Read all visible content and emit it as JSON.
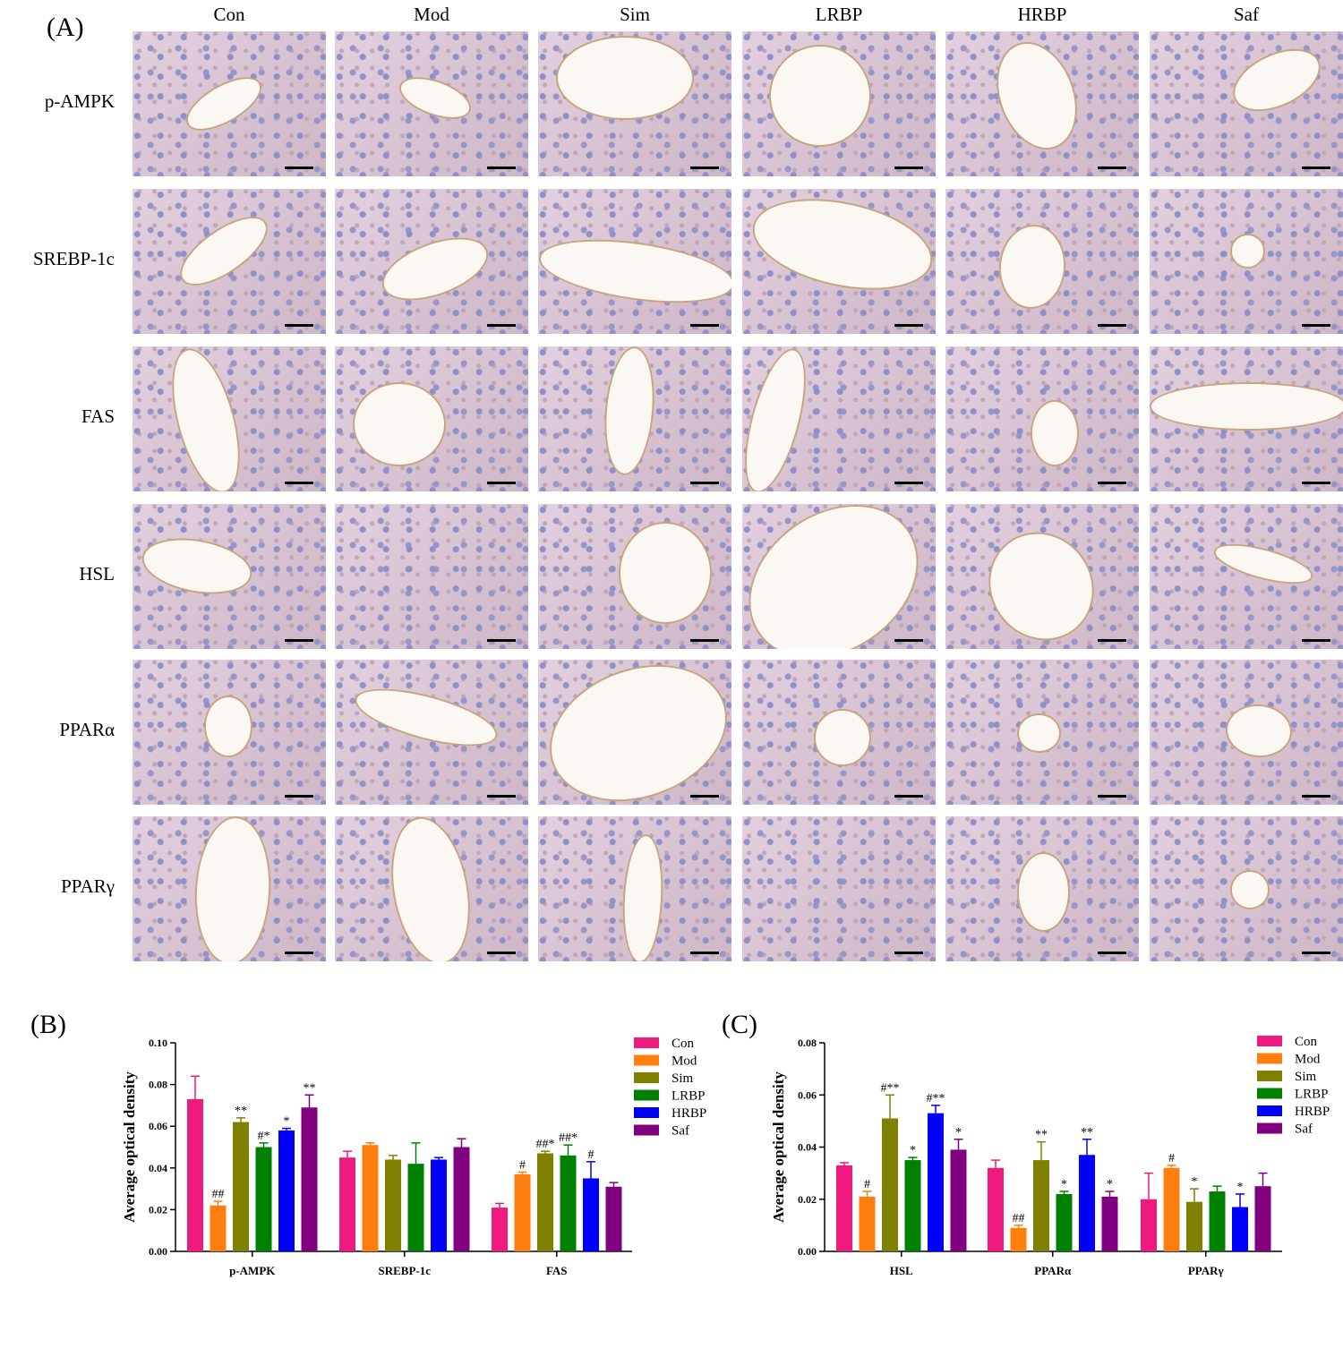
{
  "panel_a": {
    "label": "(A)",
    "columns": [
      "Con",
      "Mod",
      "Sim",
      "LRBP",
      "HRBP",
      "Saf"
    ],
    "rows": [
      "p-AMPK",
      "SREBP-1c",
      "FAS",
      "HSL",
      "PPARα",
      "PPARγ"
    ]
  },
  "chart_data": [
    {
      "panel": "(B)",
      "type": "bar",
      "categories": [
        "p-AMPK",
        "SREBP-1c",
        "FAS"
      ],
      "ylabel": "Average optical density",
      "ylim": [
        0,
        0.1
      ],
      "yticks": [
        "0.00",
        "0.02",
        "0.04",
        "0.06",
        "0.08",
        "0.10"
      ],
      "legend_position": "top-right",
      "series": [
        {
          "name": "Con",
          "color": "#f0197d",
          "values": [
            0.073,
            0.045,
            0.021
          ],
          "errors": [
            0.011,
            0.003,
            0.002
          ],
          "marks": [
            "",
            "",
            ""
          ]
        },
        {
          "name": "Mod",
          "color": "#ff7f0e",
          "values": [
            0.022,
            0.051,
            0.037
          ],
          "errors": [
            0.002,
            0.001,
            0.001
          ],
          "marks": [
            "##",
            "",
            "#"
          ]
        },
        {
          "name": "Sim",
          "color": "#808000",
          "values": [
            0.062,
            0.044,
            0.047
          ],
          "errors": [
            0.002,
            0.002,
            0.001
          ],
          "marks": [
            "**",
            "",
            "##*"
          ]
        },
        {
          "name": "LRBP",
          "color": "#008000",
          "values": [
            0.05,
            0.042,
            0.046
          ],
          "errors": [
            0.002,
            0.01,
            0.005
          ],
          "marks": [
            "#*",
            "",
            "##*"
          ]
        },
        {
          "name": "HRBP",
          "color": "#0000ff",
          "values": [
            0.058,
            0.044,
            0.035
          ],
          "errors": [
            0.001,
            0.001,
            0.008
          ],
          "marks": [
            "*",
            "",
            "#"
          ]
        },
        {
          "name": "Saf",
          "color": "#800080",
          "values": [
            0.069,
            0.05,
            0.031
          ],
          "errors": [
            0.006,
            0.004,
            0.002
          ],
          "marks": [
            "**",
            "",
            ""
          ]
        }
      ]
    },
    {
      "panel": "(C)",
      "type": "bar",
      "categories": [
        "HSL",
        "PPARα",
        "PPARγ"
      ],
      "ylabel": "Average optical density",
      "ylim": [
        0,
        0.08
      ],
      "yticks": [
        "0.00",
        "0.02",
        "0.04",
        "0.06",
        "0.08"
      ],
      "legend_position": "top-right",
      "series": [
        {
          "name": "Con",
          "color": "#f0197d",
          "values": [
            0.033,
            0.032,
            0.02
          ],
          "errors": [
            0.001,
            0.003,
            0.01
          ],
          "marks": [
            "",
            "",
            ""
          ]
        },
        {
          "name": "Mod",
          "color": "#ff7f0e",
          "values": [
            0.021,
            0.009,
            0.032
          ],
          "errors": [
            0.002,
            0.001,
            0.001
          ],
          "marks": [
            "#",
            "##",
            "#"
          ]
        },
        {
          "name": "Sim",
          "color": "#808000",
          "values": [
            0.051,
            0.035,
            0.019
          ],
          "errors": [
            0.009,
            0.007,
            0.005
          ],
          "marks": [
            "#**",
            "**",
            "*"
          ]
        },
        {
          "name": "LRBP",
          "color": "#008000",
          "values": [
            0.035,
            0.022,
            0.023
          ],
          "errors": [
            0.001,
            0.001,
            0.002
          ],
          "marks": [
            "*",
            "*",
            ""
          ]
        },
        {
          "name": "HRBP",
          "color": "#0000ff",
          "values": [
            0.053,
            0.037,
            0.017
          ],
          "errors": [
            0.003,
            0.006,
            0.005
          ],
          "marks": [
            "#**",
            "**",
            "*"
          ]
        },
        {
          "name": "Saf",
          "color": "#800080",
          "values": [
            0.039,
            0.021,
            0.025
          ],
          "errors": [
            0.004,
            0.002,
            0.005
          ],
          "marks": [
            "*",
            "*",
            ""
          ]
        }
      ]
    }
  ]
}
